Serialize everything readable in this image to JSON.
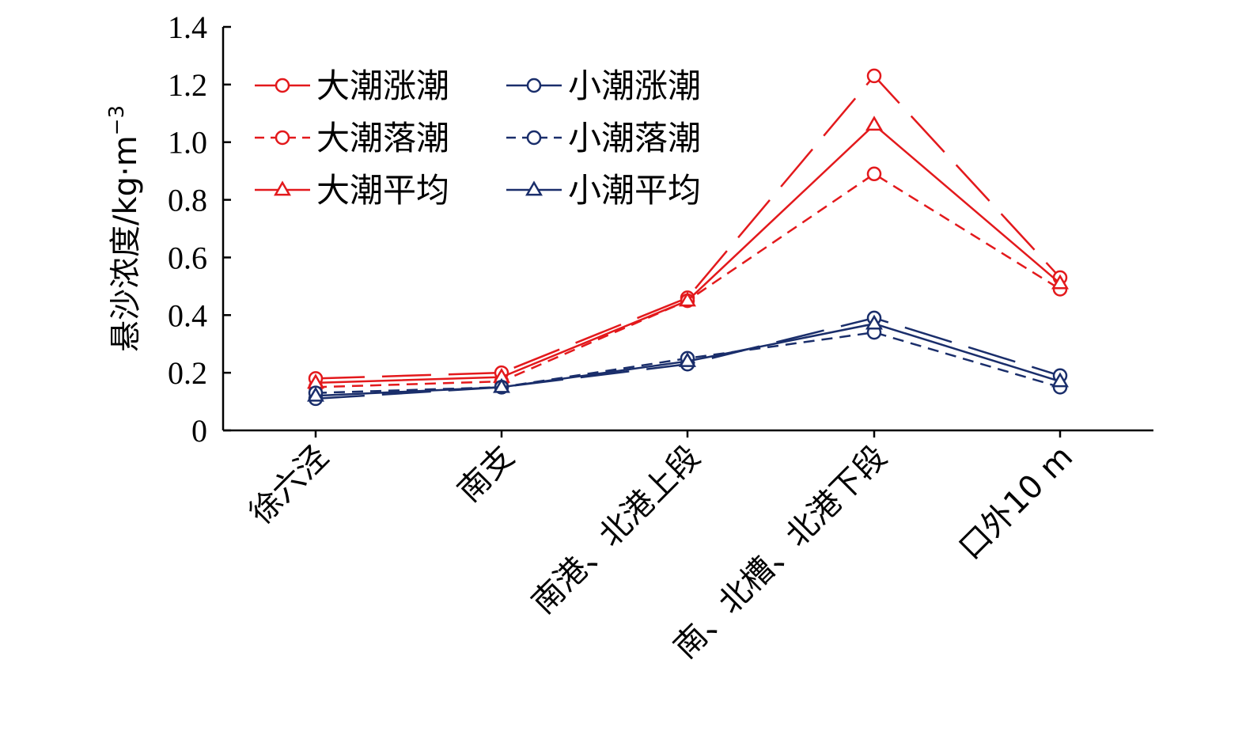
{
  "chart_data": {
    "type": "line",
    "ylabel": "悬沙浓度/kg·m",
    "ylabel_sup": "−3",
    "categories": [
      "徐六泾",
      "南支",
      "南港、北港上段",
      "南、北槽、北港下段",
      "口外10 m"
    ],
    "ylim": [
      0,
      1.4
    ],
    "yticks": [
      0,
      0.2,
      0.4,
      0.6,
      0.8,
      1.0,
      1.2,
      1.4
    ],
    "ytick_labels": [
      "0",
      "0.2",
      "0.4",
      "0.6",
      "0.8",
      "1.0",
      "1.2",
      "1.4"
    ],
    "legend_position": "top-left",
    "series": [
      {
        "name": "大潮涨潮",
        "values": [
          0.18,
          0.2,
          0.46,
          1.23,
          0.53
        ],
        "color": "#e3191c",
        "dash": "long-dash",
        "marker": "circle",
        "legend_style": "solid"
      },
      {
        "name": "大潮落潮",
        "values": [
          0.15,
          0.17,
          0.45,
          0.89,
          0.49
        ],
        "color": "#e3191c",
        "dash": "short-dash",
        "marker": "circle",
        "legend_style": "short-dash"
      },
      {
        "name": "大潮平均",
        "values": [
          0.165,
          0.185,
          0.45,
          1.06,
          0.51
        ],
        "color": "#e3191c",
        "dash": "solid",
        "marker": "triangle",
        "legend_style": "solid"
      },
      {
        "name": "小潮涨潮",
        "values": [
          0.11,
          0.15,
          0.23,
          0.39,
          0.19
        ],
        "color": "#1a2e6b",
        "dash": "long-dash",
        "marker": "circle",
        "legend_style": "solid"
      },
      {
        "name": "小潮落潮",
        "values": [
          0.13,
          0.15,
          0.25,
          0.34,
          0.15
        ],
        "color": "#1a2e6b",
        "dash": "short-dash",
        "marker": "circle",
        "legend_style": "short-dash"
      },
      {
        "name": "小潮平均",
        "values": [
          0.12,
          0.15,
          0.24,
          0.37,
          0.17
        ],
        "color": "#1a2e6b",
        "dash": "solid",
        "marker": "triangle",
        "legend_style": "solid"
      }
    ],
    "legend_order": [
      0,
      3,
      1,
      4,
      2,
      5
    ]
  }
}
